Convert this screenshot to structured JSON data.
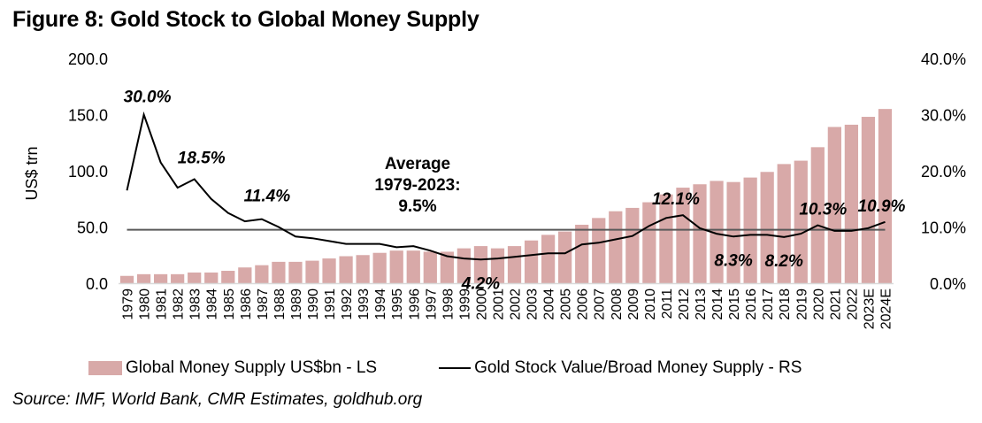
{
  "title": "Figure 8: Gold Stock to Global Money Supply",
  "source": "Source: IMF, World Bank, CMR Estimates, goldhub.org",
  "colors": {
    "bar": "#d8a9a8",
    "line": "#000000",
    "average_line": "#595959",
    "axis": "#d9d9d9"
  },
  "chart_data": {
    "type": "bar+line",
    "title": "Figure 8: Gold Stock to Global Money Supply",
    "ylabel": "US$ trn",
    "ylabel_right": "",
    "xlabel": "",
    "ylim": [
      0,
      200
    ],
    "ylim_right": [
      0,
      40
    ],
    "yticks": [
      "0.0",
      "50.0",
      "100.0",
      "150.0",
      "200.0"
    ],
    "yticks_right": [
      "0.0%",
      "10.0%",
      "20.0%",
      "30.0%",
      "40.0%"
    ],
    "grid": false,
    "legend_position": "bottom",
    "categories": [
      "1979",
      "1980",
      "1981",
      "1982",
      "1983",
      "1984",
      "1985",
      "1986",
      "1987",
      "1988",
      "1989",
      "1990",
      "1991",
      "1992",
      "1993",
      "1994",
      "1995",
      "1996",
      "1997",
      "1998",
      "1999",
      "2000",
      "2001",
      "2002",
      "2003",
      "2004",
      "2005",
      "2006",
      "2007",
      "2008",
      "2009",
      "2010",
      "2011",
      "2012",
      "2013",
      "2014",
      "2015",
      "2016",
      "2017",
      "2018",
      "2019",
      "2020",
      "2021",
      "2022",
      "2023E",
      "2024E"
    ],
    "series": [
      {
        "name": "Global Money Supply US$bn - LS",
        "type": "bar",
        "axis": "left",
        "values": [
          6.5,
          8,
          8,
          8,
          9.5,
          9.5,
          11,
          14,
          16,
          19,
          19,
          20,
          22,
          24,
          25,
          27,
          29,
          29,
          28,
          28,
          31,
          33,
          31,
          33,
          38,
          43,
          46,
          52,
          58,
          64,
          67,
          72,
          79,
          85,
          88,
          91,
          90,
          94,
          99,
          106,
          109,
          121,
          139,
          141,
          148,
          155
        ]
      },
      {
        "name": "Gold Stock Value/Broad Money Supply - RS",
        "type": "line",
        "axis": "right",
        "values": [
          16.5,
          30.0,
          21.5,
          17.0,
          18.5,
          15.0,
          12.5,
          11.0,
          11.4,
          10.0,
          8.3,
          8.0,
          7.5,
          7.0,
          7.0,
          7.0,
          6.4,
          6.6,
          5.8,
          4.8,
          4.4,
          4.2,
          4.4,
          4.7,
          5.0,
          5.3,
          5.3,
          6.9,
          7.2,
          7.8,
          8.4,
          10.2,
          11.6,
          12.1,
          9.8,
          8.8,
          8.3,
          8.6,
          8.6,
          8.2,
          8.8,
          10.3,
          9.3,
          9.3,
          9.8,
          10.9
        ]
      }
    ],
    "average": {
      "value": 9.5,
      "axis": "right",
      "label_lines": [
        "Average",
        "1979-2023:",
        "9.5%"
      ]
    },
    "annotations": [
      {
        "category": "1980",
        "text": "30.0%"
      },
      {
        "category": "1983",
        "text": "18.5%"
      },
      {
        "category": "1987",
        "text": "11.4%"
      },
      {
        "category": "2000",
        "text": "4.2%"
      },
      {
        "category": "2012",
        "text": "12.1%"
      },
      {
        "category": "2015",
        "text": "8.3%"
      },
      {
        "category": "2018",
        "text": "8.2%"
      },
      {
        "category": "2020",
        "text": "10.3%"
      },
      {
        "category": "2024E",
        "text": "10.9%"
      }
    ]
  },
  "legend": {
    "bar_label": "Global Money Supply US$bn - LS",
    "line_label": "Gold Stock Value/Broad Money Supply - RS"
  }
}
